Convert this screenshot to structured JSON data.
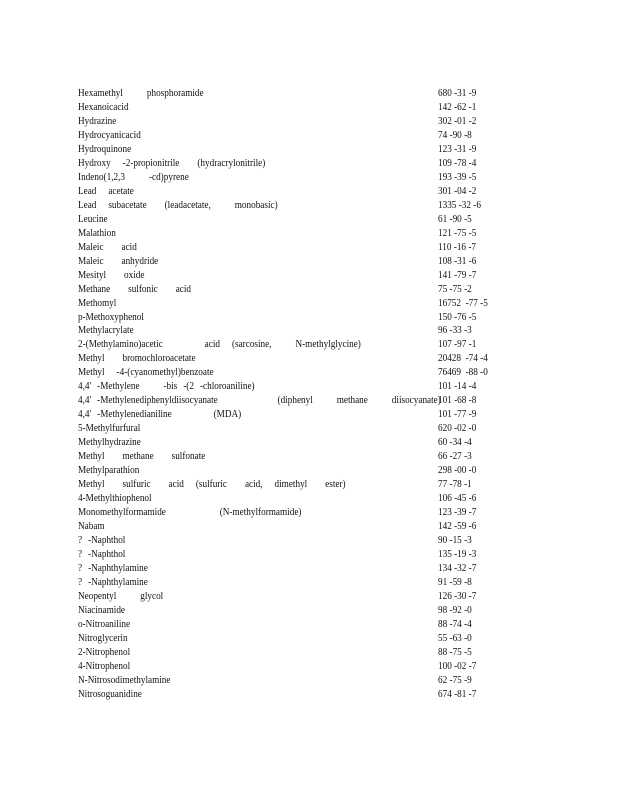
{
  "rows": [
    {
      "name": "Hexamethyl    phosphoramide",
      "cas": "680 -31 -9"
    },
    {
      "name": "Hexanoicacid",
      "cas": "142 -62 -1"
    },
    {
      "name": "Hydrazine",
      "cas": "302 -01 -2"
    },
    {
      "name": "Hydrocyanicacid",
      "cas": "74 -90 -8"
    },
    {
      "name": "Hydroquinone",
      "cas": "123 -31 -9"
    },
    {
      "name": "Hydroxy  -2-propionitrile   (hydracrylonitrile)",
      "cas": "109 -78 -4"
    },
    {
      "name": "Indeno(1,2,3    -cd)pyrene",
      "cas": "193 -39 -5"
    },
    {
      "name": "Lead  acetate",
      "cas": "301 -04 -2"
    },
    {
      "name": "Lead  subacetate   (leadacetate,    monobasic)",
      "cas": "1335 -32 -6"
    },
    {
      "name": "Leucine",
      "cas": "61 -90 -5"
    },
    {
      "name": "Malathion",
      "cas": "121 -75 -5"
    },
    {
      "name": "Maleic   acid",
      "cas": "110 -16 -7"
    },
    {
      "name": "Maleic   anhydride",
      "cas": "108 -31 -6"
    },
    {
      "name": "Mesityl   oxide",
      "cas": "141 -79 -7"
    },
    {
      "name": "Methane   sulfonic   acid",
      "cas": "75 -75 -2"
    },
    {
      "name": "Methomyl",
      "cas": "16752  -77 -5"
    },
    {
      "name": "p-Methoxyphenol",
      "cas": "150 -76 -5"
    },
    {
      "name": "Methylacrylate",
      "cas": "96 -33 -3"
    },
    {
      "name": "2-(Methylamino)acetic       acid  (sarcosine,    N-methylglycine)",
      "cas": "107 -97 -1"
    },
    {
      "name": "Methyl   bromochloroacetate",
      "cas": "20428  -74 -4"
    },
    {
      "name": "Methyl  -4-(cyanomethyl)benzoate",
      "cas": "76469  -88 -0"
    },
    {
      "name": "4,4' -Methylene    -bis -(2 -chloroaniline)",
      "cas": "101 -14 -4"
    },
    {
      "name": "4,4' -Methylenediphenyldiisocyanate          (diphenyl    methane    diisocyanate)",
      "cas": "101 -68 -8"
    },
    {
      "name": "4,4' -Methylenedianiline       (MDA)",
      "cas": "101 -77 -9"
    },
    {
      "name": "5-Methylfurfural",
      "cas": "620 -02 -0"
    },
    {
      "name": "Methylhydrazine",
      "cas": "60 -34 -4"
    },
    {
      "name": "Methyl   methane   sulfonate",
      "cas": "66 -27 -3"
    },
    {
      "name": "Methylparathion",
      "cas": "298 -00 -0"
    },
    {
      "name": "Methyl   sulfuric   acid  (sulfuric   acid,  dimethyl   ester)",
      "cas": "77 -78 -1"
    },
    {
      "name": "4-Methylthiophenol",
      "cas": "106 -45 -6"
    },
    {
      "name": "Monomethylformamide         (N-methylformamide)",
      "cas": "123 -39 -7"
    },
    {
      "name": "Nabam",
      "cas": "142 -59 -6"
    },
    {
      "name": "? -Naphthol",
      "cas": "90 -15 -3"
    },
    {
      "name": "? -Naphthol",
      "cas": "135 -19 -3"
    },
    {
      "name": "? -Naphthylamine",
      "cas": "134 -32 -7"
    },
    {
      "name": "? -Naphthylamine",
      "cas": "91 -59 -8"
    },
    {
      "name": "Neopentyl    glycol",
      "cas": "126 -30 -7"
    },
    {
      "name": "Niacinamide",
      "cas": "98 -92 -0"
    },
    {
      "name": "o-Nitroaniline",
      "cas": "88 -74 -4"
    },
    {
      "name": "Nitroglycerin",
      "cas": "55 -63 -0"
    },
    {
      "name": "2-Nitrophenol",
      "cas": "88 -75 -5"
    },
    {
      "name": "4-Nitrophenol",
      "cas": "100 -02 -7"
    },
    {
      "name": "N-Nitrosodimethylamine",
      "cas": "62 -75 -9"
    },
    {
      "name": "Nitrosoguanidine",
      "cas": "674 -81 -7"
    }
  ]
}
